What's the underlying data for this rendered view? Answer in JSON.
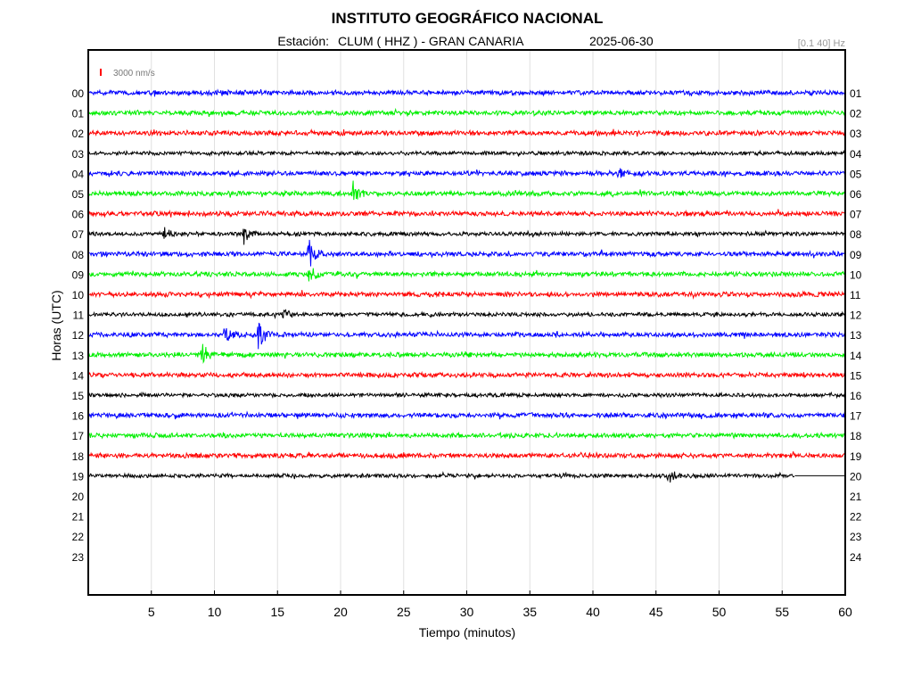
{
  "chart_data": {
    "type": "line",
    "title": "INSTITUTO GEOGRÁFICO NACIONAL",
    "station_label": "Estación:",
    "station": "CLUM ( HHZ ) - GRAN CANARIA",
    "date": "2025-06-30",
    "filter_label": "[0.1 40] Hz",
    "scale_label": "3000 nm/s",
    "xlabel": "Tiempo (minutos)",
    "ylabel": "Horas (UTC)",
    "xlim": [
      0,
      60
    ],
    "x_ticks": [
      "5",
      "10",
      "15",
      "20",
      "25",
      "30",
      "35",
      "40",
      "45",
      "50",
      "55",
      "60"
    ],
    "left_hour_labels": [
      "00",
      "01",
      "02",
      "03",
      "04",
      "05",
      "06",
      "07",
      "08",
      "09",
      "10",
      "11",
      "12",
      "13",
      "14",
      "15",
      "16",
      "17",
      "18",
      "19",
      "20",
      "21",
      "22",
      "23"
    ],
    "right_hour_labels": [
      "01",
      "02",
      "03",
      "04",
      "05",
      "06",
      "07",
      "08",
      "09",
      "10",
      "11",
      "12",
      "13",
      "14",
      "15",
      "16",
      "17",
      "18",
      "19",
      "20",
      "21",
      "22",
      "23",
      "24"
    ],
    "grid": "vertical",
    "colors": [
      "#0000ff",
      "#00ee00",
      "#ff0000",
      "#000000"
    ],
    "last_data_minute": 56,
    "traces": [
      {
        "hour": "00",
        "color": "#0000ff",
        "noise": 3,
        "events": []
      },
      {
        "hour": "01",
        "color": "#00ee00",
        "noise": 3,
        "events": []
      },
      {
        "hour": "02",
        "color": "#ff0000",
        "noise": 3,
        "events": []
      },
      {
        "hour": "03",
        "color": "#000000",
        "noise": 2.5,
        "events": []
      },
      {
        "hour": "04",
        "color": "#0000ff",
        "noise": 3,
        "events": [
          {
            "minute": 42,
            "amp": 6
          }
        ]
      },
      {
        "hour": "05",
        "color": "#00ee00",
        "noise": 3,
        "events": [
          {
            "minute": 21,
            "amp": 12
          }
        ]
      },
      {
        "hour": "06",
        "color": "#ff0000",
        "noise": 3,
        "events": []
      },
      {
        "hour": "07",
        "color": "#000000",
        "noise": 2.5,
        "events": [
          {
            "minute": 6,
            "amp": 7
          },
          {
            "minute": 12.3,
            "amp": 12
          }
        ]
      },
      {
        "hour": "08",
        "color": "#0000ff",
        "noise": 3,
        "events": [
          {
            "minute": 17.5,
            "amp": 18
          }
        ]
      },
      {
        "hour": "09",
        "color": "#00ee00",
        "noise": 3,
        "events": [
          {
            "minute": 17.5,
            "amp": 10
          }
        ]
      },
      {
        "hour": "10",
        "color": "#ff0000",
        "noise": 3,
        "events": []
      },
      {
        "hour": "11",
        "color": "#000000",
        "noise": 2.5,
        "events": [
          {
            "minute": 15.5,
            "amp": 6
          }
        ]
      },
      {
        "hour": "12",
        "color": "#0000ff",
        "noise": 3,
        "events": [
          {
            "minute": 10.8,
            "amp": 10
          },
          {
            "minute": 13.5,
            "amp": 18
          }
        ]
      },
      {
        "hour": "13",
        "color": "#00ee00",
        "noise": 3,
        "events": [
          {
            "minute": 9,
            "amp": 14
          }
        ]
      },
      {
        "hour": "14",
        "color": "#ff0000",
        "noise": 3,
        "events": []
      },
      {
        "hour": "15",
        "color": "#000000",
        "noise": 2.5,
        "events": []
      },
      {
        "hour": "16",
        "color": "#0000ff",
        "noise": 3,
        "events": []
      },
      {
        "hour": "17",
        "color": "#00ee00",
        "noise": 3,
        "events": []
      },
      {
        "hour": "18",
        "color": "#ff0000",
        "noise": 3,
        "events": []
      },
      {
        "hour": "19",
        "color": "#000000",
        "noise": 2.5,
        "events": [
          {
            "minute": 46,
            "amp": 9
          }
        ]
      }
    ]
  }
}
